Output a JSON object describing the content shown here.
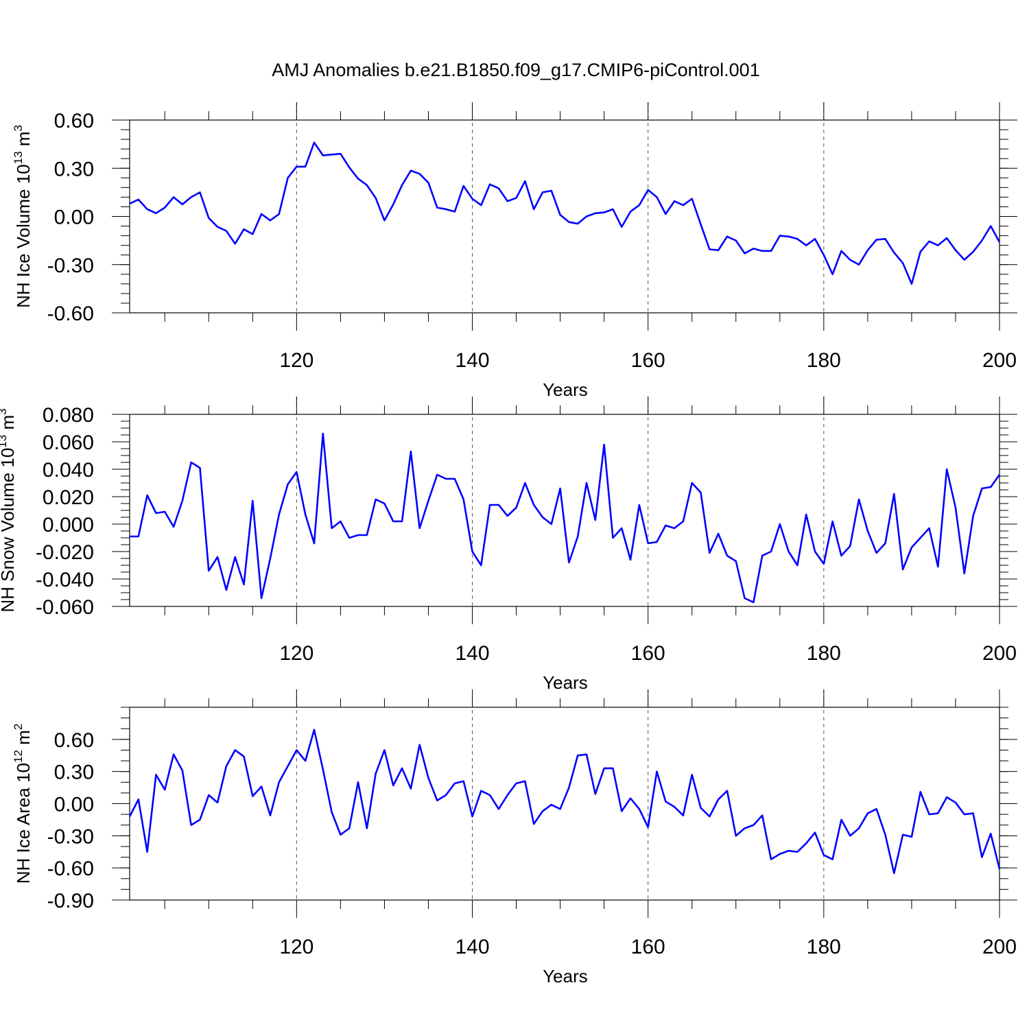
{
  "figure": {
    "title": "AMJ Anomalies b.e21.B1850.f09_g17.CMIP6-piControl.001"
  },
  "chart_data": [
    {
      "type": "line",
      "xlabel": "Years",
      "ylabel_main": "NH Ice Volume 10",
      "ylabel_sup": "13",
      "ylabel_unit": " m",
      "ylabel_unit_sup": "3",
      "xlim": [
        101,
        200
      ],
      "ylim": [
        -0.6,
        0.6
      ],
      "xticks": [
        120,
        140,
        160,
        180,
        200
      ],
      "yticks": [
        0.6,
        0.3,
        0.0,
        -0.3,
        -0.6
      ],
      "ytick_labels": [
        "0.60",
        "0.30",
        "0.00",
        "-0.30",
        "-0.60"
      ],
      "yminor_step": 0.06,
      "grid_x": [
        120,
        140,
        160,
        180
      ],
      "color": "#0000ff",
      "x_start": 101,
      "values": [
        0.08,
        0.105,
        0.045,
        0.02,
        0.055,
        0.12,
        0.075,
        0.12,
        0.15,
        -0.01,
        -0.065,
        -0.09,
        -0.17,
        -0.08,
        -0.11,
        0.015,
        -0.025,
        0.015,
        0.24,
        0.31,
        0.31,
        0.46,
        0.38,
        0.385,
        0.39,
        0.305,
        0.235,
        0.195,
        0.115,
        -0.025,
        0.075,
        0.195,
        0.285,
        0.265,
        0.21,
        0.055,
        0.045,
        0.03,
        0.19,
        0.11,
        0.07,
        0.2,
        0.175,
        0.095,
        0.115,
        0.22,
        0.045,
        0.15,
        0.16,
        0.01,
        -0.035,
        -0.045,
        0.0,
        0.02,
        0.025,
        0.045,
        -0.065,
        0.03,
        0.07,
        0.165,
        0.12,
        0.015,
        0.095,
        0.07,
        0.11,
        -0.05,
        -0.205,
        -0.21,
        -0.125,
        -0.15,
        -0.23,
        -0.2,
        -0.215,
        -0.215,
        -0.12,
        -0.125,
        -0.14,
        -0.18,
        -0.14,
        -0.24,
        -0.36,
        -0.215,
        -0.27,
        -0.3,
        -0.21,
        -0.145,
        -0.14,
        -0.225,
        -0.29,
        -0.42,
        -0.22,
        -0.155,
        -0.18,
        -0.135,
        -0.21,
        -0.27,
        -0.22,
        -0.15,
        -0.06,
        -0.16
      ]
    },
    {
      "type": "line",
      "xlabel": "Years",
      "ylabel_main": "NH Snow Volume 10",
      "ylabel_sup": "13",
      "ylabel_unit": " m",
      "ylabel_unit_sup": "3",
      "xlim": [
        101,
        200
      ],
      "ylim": [
        -0.06,
        0.08
      ],
      "xticks": [
        120,
        140,
        160,
        180,
        200
      ],
      "yticks": [
        0.08,
        0.06,
        0.04,
        0.02,
        0.0,
        -0.02,
        -0.04,
        -0.06
      ],
      "ytick_labels": [
        "0.080",
        "0.060",
        "0.040",
        "0.020",
        "0.000",
        "-0.020",
        "-0.040",
        "-0.060"
      ],
      "yminor_step": 0.005,
      "grid_x": [
        120,
        140,
        160,
        180
      ],
      "color": "#0000ff",
      "x_start": 101,
      "values": [
        -0.009,
        -0.009,
        0.021,
        0.008,
        0.009,
        -0.002,
        0.017,
        0.045,
        0.041,
        -0.034,
        -0.024,
        -0.048,
        -0.024,
        -0.044,
        0.017,
        -0.054,
        -0.025,
        0.007,
        0.029,
        0.038,
        0.007,
        -0.014,
        0.066,
        -0.003,
        0.002,
        -0.01,
        -0.008,
        -0.008,
        0.018,
        0.015,
        0.002,
        0.002,
        0.053,
        -0.003,
        0.017,
        0.036,
        0.033,
        0.033,
        0.018,
        -0.02,
        -0.03,
        0.014,
        0.014,
        0.006,
        0.012,
        0.03,
        0.014,
        0.005,
        0.0,
        0.026,
        -0.028,
        -0.009,
        0.03,
        0.003,
        0.058,
        -0.01,
        -0.003,
        -0.026,
        0.014,
        -0.014,
        -0.013,
        -0.001,
        -0.003,
        0.002,
        0.03,
        0.023,
        -0.021,
        -0.007,
        -0.023,
        -0.027,
        -0.054,
        -0.057,
        -0.023,
        -0.02,
        0.0,
        -0.02,
        -0.03,
        0.007,
        -0.02,
        -0.029,
        0.002,
        -0.023,
        -0.016,
        0.018,
        -0.005,
        -0.021,
        -0.014,
        0.022,
        -0.033,
        -0.017,
        -0.01,
        -0.003,
        -0.031,
        0.04,
        0.012,
        -0.036,
        0.006,
        0.026,
        0.027,
        0.036
      ]
    },
    {
      "type": "line",
      "xlabel": "Years",
      "ylabel_main": "NH Ice Area 10",
      "ylabel_sup": "12",
      "ylabel_unit": " m",
      "ylabel_unit_sup": "2",
      "xlim": [
        101,
        200
      ],
      "ylim": [
        -0.9,
        0.9
      ],
      "xticks": [
        120,
        140,
        160,
        180,
        200
      ],
      "yticks": [
        0.6,
        0.3,
        0.0,
        -0.3,
        -0.6,
        -0.9
      ],
      "ytick_labels": [
        "0.60",
        "0.30",
        "0.00",
        "-0.30",
        "-0.60",
        "-0.90"
      ],
      "yminor_step": 0.1,
      "grid_x": [
        120,
        140,
        160,
        180
      ],
      "color": "#0000ff",
      "x_start": 101,
      "values": [
        -0.12,
        0.04,
        -0.45,
        0.27,
        0.13,
        0.46,
        0.31,
        -0.2,
        -0.15,
        0.08,
        0.01,
        0.35,
        0.5,
        0.44,
        0.07,
        0.16,
        -0.11,
        0.2,
        0.35,
        0.5,
        0.4,
        0.69,
        0.32,
        -0.08,
        -0.29,
        -0.23,
        0.2,
        -0.23,
        0.28,
        0.5,
        0.17,
        0.33,
        0.14,
        0.55,
        0.24,
        0.03,
        0.08,
        0.19,
        0.21,
        -0.12,
        0.12,
        0.08,
        -0.05,
        0.08,
        0.19,
        0.21,
        -0.19,
        -0.07,
        -0.01,
        -0.05,
        0.15,
        0.45,
        0.46,
        0.09,
        0.33,
        0.33,
        -0.07,
        0.05,
        -0.05,
        -0.22,
        0.3,
        0.02,
        -0.03,
        -0.11,
        0.27,
        -0.04,
        -0.12,
        0.04,
        0.12,
        -0.3,
        -0.23,
        -0.2,
        -0.11,
        -0.52,
        -0.47,
        -0.44,
        -0.45,
        -0.37,
        -0.27,
        -0.48,
        -0.52,
        -0.15,
        -0.3,
        -0.23,
        -0.09,
        -0.05,
        -0.29,
        -0.65,
        -0.29,
        -0.31,
        0.11,
        -0.1,
        -0.09,
        0.06,
        0.01,
        -0.1,
        -0.09,
        -0.5,
        -0.28,
        -0.61
      ]
    }
  ]
}
